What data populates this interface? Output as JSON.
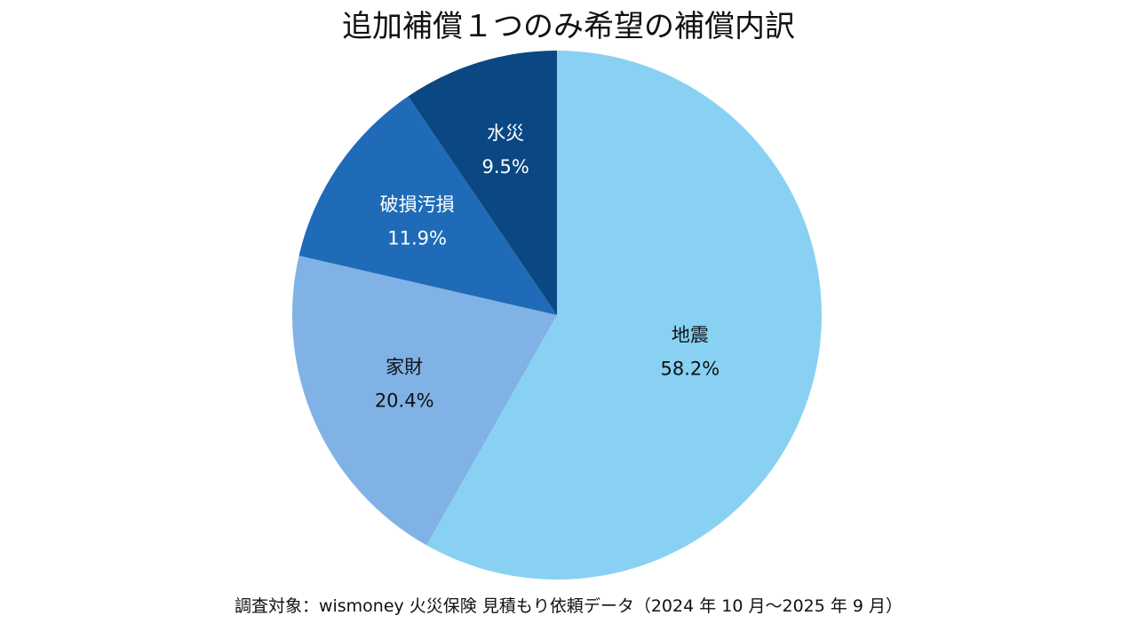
{
  "chart_data": {
    "type": "pie",
    "title": "追加補償１つのみ希望の補償内訳",
    "slices": [
      {
        "label": "地震",
        "value": 58.2,
        "value_label": "58.2%",
        "color": "#89D1F3",
        "text_color": "#111111"
      },
      {
        "label": "家財",
        "value": 20.4,
        "value_label": "20.4%",
        "color": "#80B2E6",
        "text_color": "#111111"
      },
      {
        "label": "破損汚損",
        "value": 11.9,
        "value_label": "11.9%",
        "color": "#1F6BB8",
        "text_color": "#ffffff"
      },
      {
        "label": "水災",
        "value": 9.5,
        "value_label": "9.5%",
        "color": "#0A4783",
        "text_color": "#ffffff"
      }
    ],
    "start": "12 o'clock",
    "direction": "clockwise",
    "legend": "none"
  },
  "source_note": "調査対象：wismoney 火災保険 見積もり依頼データ（2024 年 10 月〜2025 年 9 月）"
}
